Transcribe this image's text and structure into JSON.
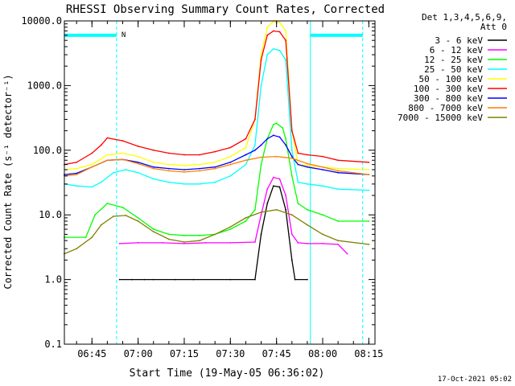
{
  "chart_data": {
    "type": "line",
    "title": "RHESSI Observing Summary Count Rates, Corrected",
    "xlabel": "Start Time (19-May-05 06:36:02)",
    "ylabel": "Corrected Count Rate (s⁻¹ detector⁻¹)",
    "yscale": "log",
    "ylim": [
      0.1,
      10000
    ],
    "xlim": [
      "06:36:02",
      "08:17:00"
    ],
    "x_ticks": [
      "06:45",
      "07:00",
      "07:15",
      "07:30",
      "07:45",
      "08:00",
      "08:15"
    ],
    "y_ticks": [
      "0.1",
      "1.0",
      "10.0",
      "100.0",
      "1000.0",
      "10000.0"
    ],
    "legend_header": [
      "Det 1,3,4,5,6,9,",
      "Att 0"
    ],
    "legend_position": "right",
    "footer": "17-Oct-2021 05:02",
    "marker_label": "N",
    "grid": false,
    "series": [
      {
        "name": "3 - 6 keV",
        "color": "#000000",
        "points": [
          [
            "06:54:00",
            1.0
          ],
          [
            "06:58:00",
            1.0
          ],
          [
            "07:02:00",
            1.0
          ],
          [
            "07:05:00",
            1.0
          ],
          [
            "07:12:00",
            1.0
          ],
          [
            "07:18:00",
            1.0
          ],
          [
            "07:30:00",
            1.0
          ],
          [
            "07:38:00",
            1.0
          ],
          [
            "07:40:00",
            5
          ],
          [
            "07:42:00",
            15
          ],
          [
            "07:44:00",
            28
          ],
          [
            "07:46:00",
            27
          ],
          [
            "07:48:00",
            12
          ],
          [
            "07:50:00",
            2
          ],
          [
            "07:51:00",
            1.0
          ],
          [
            "07:55:00",
            1.0
          ]
        ]
      },
      {
        "name": "6 - 12 keV",
        "color": "#ff00ff",
        "points": [
          [
            "06:54:00",
            3.6
          ],
          [
            "07:00:00",
            3.7
          ],
          [
            "07:08:00",
            3.7
          ],
          [
            "07:15:00",
            3.6
          ],
          [
            "07:22:00",
            3.7
          ],
          [
            "07:30:00",
            3.7
          ],
          [
            "07:38:00",
            3.8
          ],
          [
            "07:40:00",
            10
          ],
          [
            "07:42:00",
            25
          ],
          [
            "07:44:00",
            38
          ],
          [
            "07:46:00",
            36
          ],
          [
            "07:48:00",
            20
          ],
          [
            "07:50:00",
            5
          ],
          [
            "07:52:00",
            3.7
          ],
          [
            "07:55:00",
            3.6
          ],
          [
            "08:00:00",
            3.6
          ],
          [
            "08:05:00",
            3.5
          ],
          [
            "08:08:00",
            2.5
          ]
        ]
      },
      {
        "name": "12 - 25 keV",
        "color": "#00ff00",
        "points": [
          [
            "06:36:00",
            4.5
          ],
          [
            "06:43:00",
            4.5
          ],
          [
            "06:46:00",
            10
          ],
          [
            "06:50:00",
            15
          ],
          [
            "06:55:00",
            13
          ],
          [
            "07:00:00",
            9
          ],
          [
            "07:05:00",
            6
          ],
          [
            "07:10:00",
            5.0
          ],
          [
            "07:15:00",
            4.8
          ],
          [
            "07:20:00",
            4.8
          ],
          [
            "07:25:00",
            5
          ],
          [
            "07:30:00",
            6
          ],
          [
            "07:35:00",
            8
          ],
          [
            "07:38:00",
            12
          ],
          [
            "07:40:00",
            60
          ],
          [
            "07:42:00",
            150
          ],
          [
            "07:44:00",
            250
          ],
          [
            "07:45:00",
            260
          ],
          [
            "07:47:00",
            220
          ],
          [
            "07:48:00",
            150
          ],
          [
            "07:50:00",
            40
          ],
          [
            "07:52:00",
            15
          ],
          [
            "07:55:00",
            12
          ],
          [
            "08:00:00",
            10
          ],
          [
            "08:05:00",
            8
          ],
          [
            "08:15:00",
            8
          ]
        ]
      },
      {
        "name": "25 - 50 keV",
        "color": "#00ffff",
        "points": [
          [
            "06:36:00",
            30
          ],
          [
            "06:40:00",
            28
          ],
          [
            "06:45:00",
            27
          ],
          [
            "06:48:00",
            32
          ],
          [
            "06:52:00",
            45
          ],
          [
            "06:56:00",
            50
          ],
          [
            "07:00:00",
            45
          ],
          [
            "07:05:00",
            36
          ],
          [
            "07:10:00",
            32
          ],
          [
            "07:15:00",
            30
          ],
          [
            "07:20:00",
            30
          ],
          [
            "07:25:00",
            32
          ],
          [
            "07:30:00",
            40
          ],
          [
            "07:35:00",
            60
          ],
          [
            "07:38:00",
            120
          ],
          [
            "07:40:00",
            1000
          ],
          [
            "07:42:00",
            3000
          ],
          [
            "07:44:00",
            3700
          ],
          [
            "07:46:00",
            3500
          ],
          [
            "07:48:00",
            2500
          ],
          [
            "07:50:00",
            100
          ],
          [
            "07:52:00",
            32
          ],
          [
            "07:55:00",
            30
          ],
          [
            "08:00:00",
            28
          ],
          [
            "08:05:00",
            25
          ],
          [
            "08:15:00",
            24
          ]
        ]
      },
      {
        "name": "50 - 100 keV",
        "color": "#ffff00",
        "points": [
          [
            "06:36:00",
            50
          ],
          [
            "06:40:00",
            52
          ],
          [
            "06:45:00",
            60
          ],
          [
            "06:50:00",
            85
          ],
          [
            "06:55:00",
            90
          ],
          [
            "07:00:00",
            80
          ],
          [
            "07:05:00",
            65
          ],
          [
            "07:10:00",
            60
          ],
          [
            "07:15:00",
            58
          ],
          [
            "07:20:00",
            60
          ],
          [
            "07:25:00",
            65
          ],
          [
            "07:30:00",
            80
          ],
          [
            "07:35:00",
            110
          ],
          [
            "07:38:00",
            300
          ],
          [
            "07:40:00",
            3000
          ],
          [
            "07:42:00",
            8000
          ],
          [
            "07:44:00",
            9800
          ],
          [
            "07:46:00",
            9500
          ],
          [
            "07:48:00",
            7000
          ],
          [
            "07:50:00",
            200
          ],
          [
            "07:52:00",
            60
          ],
          [
            "07:55:00",
            58
          ],
          [
            "08:00:00",
            55
          ],
          [
            "08:05:00",
            52
          ],
          [
            "08:15:00",
            50
          ]
        ]
      },
      {
        "name": "100 - 300 keV",
        "color": "#ff0000",
        "points": [
          [
            "06:36:00",
            60
          ],
          [
            "06:40:00",
            65
          ],
          [
            "06:45:00",
            90
          ],
          [
            "06:48:00",
            120
          ],
          [
            "06:50:00",
            155
          ],
          [
            "06:55:00",
            140
          ],
          [
            "07:00:00",
            115
          ],
          [
            "07:05:00",
            100
          ],
          [
            "07:10:00",
            90
          ],
          [
            "07:15:00",
            85
          ],
          [
            "07:20:00",
            85
          ],
          [
            "07:25:00",
            95
          ],
          [
            "07:30:00",
            110
          ],
          [
            "07:35:00",
            150
          ],
          [
            "07:38:00",
            300
          ],
          [
            "07:40:00",
            2500
          ],
          [
            "07:42:00",
            6000
          ],
          [
            "07:44:00",
            7000
          ],
          [
            "07:46:00",
            6800
          ],
          [
            "07:48:00",
            5000
          ],
          [
            "07:50:00",
            200
          ],
          [
            "07:52:00",
            90
          ],
          [
            "07:55:00",
            85
          ],
          [
            "08:00:00",
            80
          ],
          [
            "08:05:00",
            70
          ],
          [
            "08:15:00",
            65
          ]
        ]
      },
      {
        "name": "300 - 800 keV",
        "color": "#0000ff",
        "points": [
          [
            "06:36:00",
            42
          ],
          [
            "06:40:00",
            44
          ],
          [
            "06:45:00",
            55
          ],
          [
            "06:50:00",
            70
          ],
          [
            "06:55:00",
            72
          ],
          [
            "07:00:00",
            65
          ],
          [
            "07:05:00",
            55
          ],
          [
            "07:10:00",
            52
          ],
          [
            "07:15:00",
            50
          ],
          [
            "07:20:00",
            52
          ],
          [
            "07:25:00",
            55
          ],
          [
            "07:30:00",
            65
          ],
          [
            "07:35:00",
            85
          ],
          [
            "07:38:00",
            100
          ],
          [
            "07:40:00",
            120
          ],
          [
            "07:42:00",
            150
          ],
          [
            "07:44:00",
            170
          ],
          [
            "07:46:00",
            160
          ],
          [
            "07:48:00",
            120
          ],
          [
            "07:50:00",
            80
          ],
          [
            "07:52:00",
            60
          ],
          [
            "07:55:00",
            55
          ],
          [
            "08:00:00",
            50
          ],
          [
            "08:05:00",
            45
          ],
          [
            "08:15:00",
            42
          ]
        ]
      },
      {
        "name": "800 - 7000 keV",
        "color": "#ff7f00",
        "points": [
          [
            "06:36:00",
            40
          ],
          [
            "06:40:00",
            42
          ],
          [
            "06:45:00",
            55
          ],
          [
            "06:50:00",
            70
          ],
          [
            "06:55:00",
            72
          ],
          [
            "07:00:00",
            62
          ],
          [
            "07:05:00",
            52
          ],
          [
            "07:10:00",
            48
          ],
          [
            "07:15:00",
            46
          ],
          [
            "07:20:00",
            48
          ],
          [
            "07:25:00",
            52
          ],
          [
            "07:30:00",
            60
          ],
          [
            "07:35:00",
            70
          ],
          [
            "07:40:00",
            78
          ],
          [
            "07:45:00",
            80
          ],
          [
            "07:50:00",
            75
          ],
          [
            "07:55:00",
            62
          ],
          [
            "08:00:00",
            55
          ],
          [
            "08:05:00",
            48
          ],
          [
            "08:15:00",
            42
          ]
        ]
      },
      {
        "name": "7000 - 15000 keV",
        "color": "#808000",
        "points": [
          [
            "06:36:00",
            2.5
          ],
          [
            "06:40:00",
            3.0
          ],
          [
            "06:45:00",
            4.5
          ],
          [
            "06:48:00",
            7
          ],
          [
            "06:52:00",
            9.5
          ],
          [
            "06:56:00",
            9.8
          ],
          [
            "07:00:00",
            8
          ],
          [
            "07:05:00",
            5.5
          ],
          [
            "07:10:00",
            4.2
          ],
          [
            "07:15:00",
            3.8
          ],
          [
            "07:20:00",
            4.0
          ],
          [
            "07:25:00",
            5.0
          ],
          [
            "07:30:00",
            6.5
          ],
          [
            "07:35:00",
            9
          ],
          [
            "07:40:00",
            11
          ],
          [
            "07:45:00",
            12
          ],
          [
            "07:50:00",
            10
          ],
          [
            "07:55:00",
            7
          ],
          [
            "08:00:00",
            5
          ],
          [
            "08:05:00",
            4
          ],
          [
            "08:15:00",
            3.5
          ]
        ]
      }
    ],
    "flag_lines": [
      {
        "color": "#00ffff",
        "kind": "dashed-vertical",
        "x": "06:53:00"
      },
      {
        "color": "#00ffff",
        "kind": "solid-vertical",
        "x": "07:56:00"
      },
      {
        "color": "#00ffff",
        "kind": "dashed-vertical",
        "x": "08:13:00"
      },
      {
        "color": "#00ffff",
        "kind": "solid-vertical",
        "x": "06:36:02"
      },
      {
        "color": "#00ffff",
        "kind": "bar",
        "x1": "06:36:02",
        "x2": "06:53:00",
        "y": 6000
      },
      {
        "color": "#00ffff",
        "kind": "bar",
        "x1": "07:56:00",
        "x2": "08:13:00",
        "y": 6000
      }
    ]
  }
}
